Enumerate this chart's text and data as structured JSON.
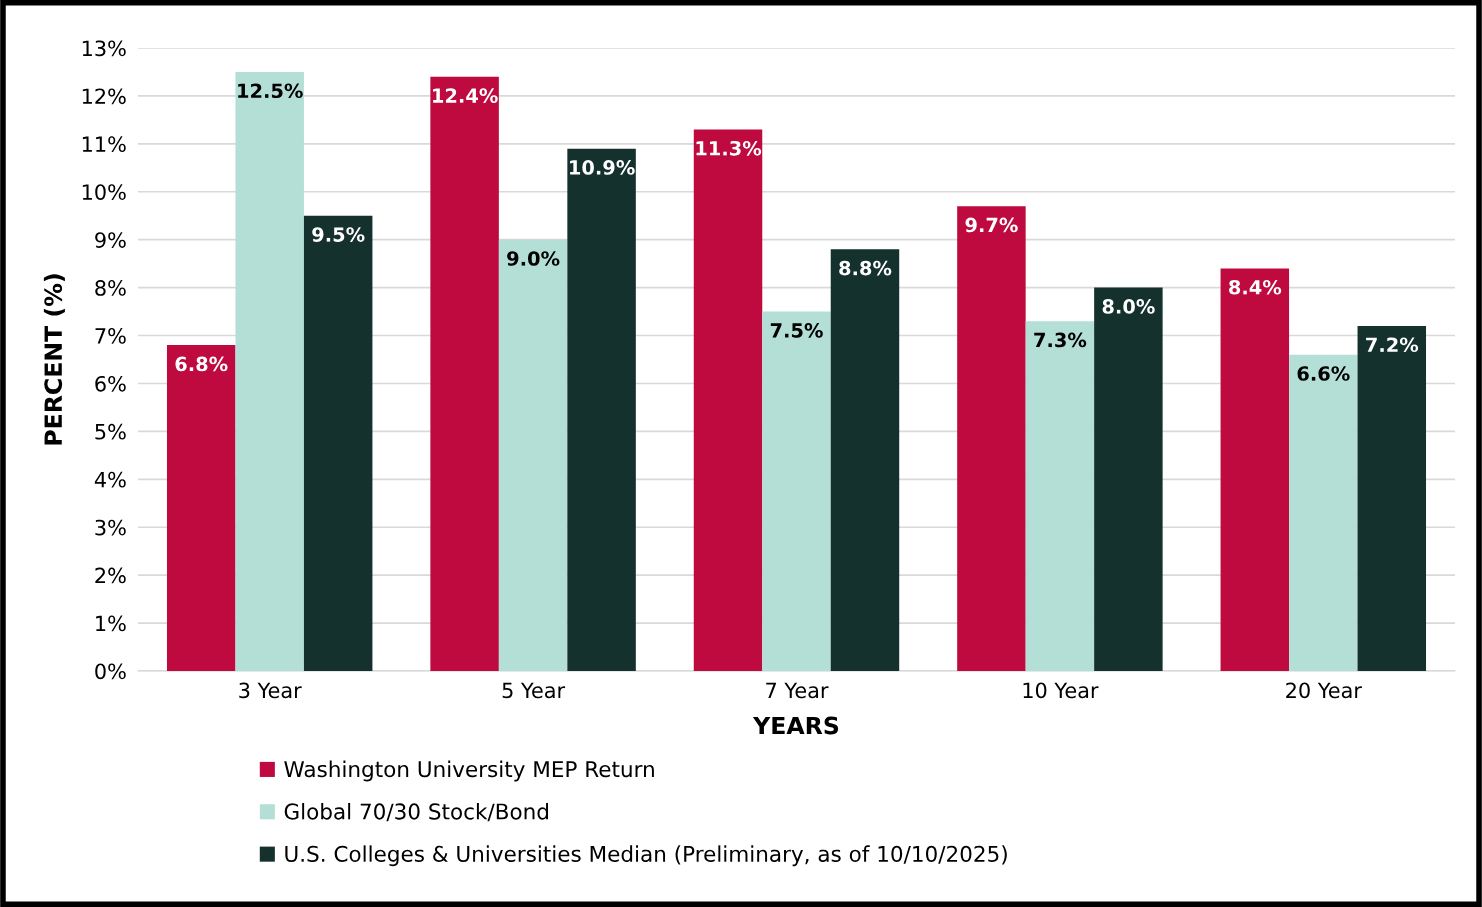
{
  "chart_data": {
    "type": "bar",
    "xlabel": "YEARS",
    "ylabel": "PERCENT (%)",
    "categories": [
      "3 Year",
      "5 Year",
      "7 Year",
      "10 Year",
      "20 Year"
    ],
    "series": [
      {
        "name": "Washington University MEP Return",
        "color": "#be0a3e",
        "values": [
          6.8,
          12.4,
          11.3,
          9.7,
          8.4
        ],
        "value_labels": [
          "6.8%",
          "12.4%",
          "11.3%",
          "9.7%",
          "8.4%"
        ]
      },
      {
        "name": "Global 70/30 Stock/Bond",
        "color": "#b3dfd6",
        "values": [
          12.5,
          9.0,
          7.5,
          7.3,
          6.6
        ],
        "value_labels": [
          "12.5%",
          "9.0%",
          "7.5%",
          "7.3%",
          "6.6%"
        ]
      },
      {
        "name": "U.S. Colleges & Universities Median (Preliminary, as of 10/10/2025)",
        "color": "#15312d",
        "values": [
          9.5,
          10.9,
          8.8,
          8.0,
          7.2
        ],
        "value_labels": [
          "9.5%",
          "10.9%",
          "8.8%",
          "8.0%",
          "7.2%"
        ]
      }
    ],
    "ylim": [
      0,
      13
    ],
    "yticks": [
      {
        "value": 0,
        "label": "0%"
      },
      {
        "value": 1,
        "label": "1%"
      },
      {
        "value": 2,
        "label": "2%"
      },
      {
        "value": 3,
        "label": "3%"
      },
      {
        "value": 4,
        "label": "4%"
      },
      {
        "value": 5,
        "label": "5%"
      },
      {
        "value": 6,
        "label": "6%"
      },
      {
        "value": 7,
        "label": "7%"
      },
      {
        "value": 8,
        "label": "8%"
      },
      {
        "value": 9,
        "label": "9%"
      },
      {
        "value": 10,
        "label": "10%"
      },
      {
        "value": 11,
        "label": "11%"
      },
      {
        "value": 12,
        "label": "12%"
      },
      {
        "value": 13,
        "label": "13%"
      }
    ],
    "grid": "y",
    "legend": "bottom"
  }
}
